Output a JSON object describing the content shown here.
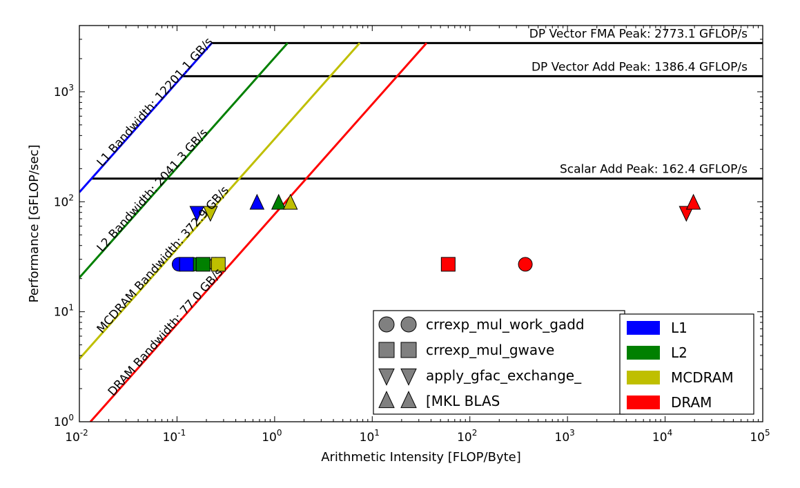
{
  "chart_data": {
    "type": "scatter",
    "xlabel": "Arithmetic Intensity [FLOP/Byte]",
    "ylabel": "Performance [GFLOP/sec]",
    "x_scale": "log",
    "y_scale": "log",
    "xlim": [
      0.01,
      100000
    ],
    "ylim": [
      1,
      4000
    ],
    "x_ticks": [
      {
        "value": 0.01,
        "base": "10",
        "exp": "-2"
      },
      {
        "value": 0.1,
        "base": "10",
        "exp": "-1"
      },
      {
        "value": 1,
        "base": "10",
        "exp": "0"
      },
      {
        "value": 10,
        "base": "10",
        "exp": "1"
      },
      {
        "value": 100,
        "base": "10",
        "exp": "2"
      },
      {
        "value": 1000,
        "base": "10",
        "exp": "3"
      },
      {
        "value": 10000,
        "base": "10",
        "exp": "4"
      },
      {
        "value": 100000,
        "base": "10",
        "exp": "5"
      }
    ],
    "y_ticks": [
      {
        "value": 1,
        "base": "10",
        "exp": "0"
      },
      {
        "value": 10,
        "base": "10",
        "exp": "1"
      },
      {
        "value": 100,
        "base": "10",
        "exp": "2"
      },
      {
        "value": 1000,
        "base": "10",
        "exp": "3"
      }
    ],
    "colors": {
      "L1": "#0000ff",
      "L2": "#008000",
      "MCDRAM": "#bfbf00",
      "DRAM": "#ff0000",
      "ceiling": "#000000",
      "marker_gray": "#808080"
    },
    "bandwidths": [
      {
        "name": "L1",
        "label": "L1 Bandwidth: 12201.1 GB/s",
        "bw": 12201.1
      },
      {
        "name": "L2",
        "label": "L2 Bandwidth: 2041.3 GB/s",
        "bw": 2041.3
      },
      {
        "name": "MCDRAM",
        "label": "MCDRAM Bandwidth: 372.9 GB/s",
        "bw": 372.9
      },
      {
        "name": "DRAM",
        "label": "DRAM Bandwidth: 77.0 GB/s",
        "bw": 77.0
      }
    ],
    "ceilings": [
      {
        "label": "DP Vector FMA Peak: 2773.1 GFLOP/s",
        "value": 2773.1
      },
      {
        "label": "DP Vector Add Peak: 1386.4 GFLOP/s",
        "value": 1386.4
      },
      {
        "label": "Scalar Add Peak: 162.4 GFLOP/s",
        "value": 162.4
      }
    ],
    "points": [
      {
        "kernel": "crrexp_mul_work_gadd",
        "marker": "circle",
        "level": "L1",
        "x": 0.105,
        "y": 27
      },
      {
        "kernel": "crrexp_mul_work_gadd",
        "marker": "circle",
        "level": "L2",
        "x": 0.145,
        "y": 27
      },
      {
        "kernel": "crrexp_mul_work_gadd",
        "marker": "circle",
        "level": "MCDRAM",
        "x": 0.25,
        "y": 27
      },
      {
        "kernel": "crrexp_mul_work_gadd",
        "marker": "circle",
        "level": "DRAM",
        "x": 370,
        "y": 27
      },
      {
        "kernel": "crrexp_mul_gwave",
        "marker": "square",
        "level": "L1",
        "x": 0.125,
        "y": 27
      },
      {
        "kernel": "crrexp_mul_gwave",
        "marker": "square",
        "level": "L2",
        "x": 0.185,
        "y": 27
      },
      {
        "kernel": "crrexp_mul_gwave",
        "marker": "square",
        "level": "MCDRAM",
        "x": 0.265,
        "y": 27
      },
      {
        "kernel": "crrexp_mul_gwave",
        "marker": "square",
        "level": "DRAM",
        "x": 60,
        "y": 27
      },
      {
        "kernel": "apply_gfac_exchange_",
        "marker": "triangle_down",
        "level": "L1",
        "x": 0.16,
        "y": 80
      },
      {
        "kernel": "apply_gfac_exchange_",
        "marker": "triangle_down",
        "level": "MCDRAM",
        "x": 0.22,
        "y": 80
      },
      {
        "kernel": "apply_gfac_exchange_",
        "marker": "triangle_down",
        "level": "DRAM",
        "x": 16500,
        "y": 80
      },
      {
        "kernel": "[MKL BLAS",
        "marker": "triangle_up",
        "level": "L1",
        "x": 0.66,
        "y": 97
      },
      {
        "kernel": "[MKL BLAS",
        "marker": "triangle_up",
        "level": "L2",
        "x": 1.1,
        "y": 97
      },
      {
        "kernel": "[MKL BLAS",
        "marker": "triangle_up",
        "level": "MCDRAM",
        "x": 1.45,
        "y": 97
      },
      {
        "kernel": "[MKL BLAS",
        "marker": "triangle_up",
        "level": "DRAM",
        "x": 19500,
        "y": 97
      }
    ],
    "legend_kernels": [
      {
        "marker": "circle",
        "label": "crrexp_mul_work_gadd"
      },
      {
        "marker": "square",
        "label": "crrexp_mul_gwave"
      },
      {
        "marker": "triangle_down",
        "label": "apply_gfac_exchange_"
      },
      {
        "marker": "triangle_up",
        "label": "[MKL BLAS"
      }
    ],
    "legend_levels": [
      {
        "level": "L1",
        "label": "L1"
      },
      {
        "level": "L2",
        "label": "L2"
      },
      {
        "level": "MCDRAM",
        "label": "MCDRAM"
      },
      {
        "level": "DRAM",
        "label": "DRAM"
      }
    ],
    "legend_placement": "lower-right",
    "grid": false
  }
}
